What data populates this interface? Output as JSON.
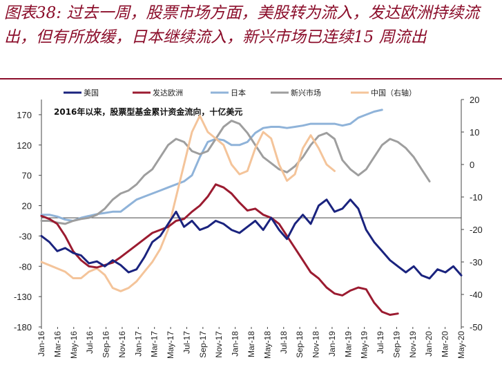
{
  "header": {
    "title": "图表38: 过去一周，股票市场方面，美股转为流入，发达欧洲持续流出，但有所放缓，日本继续流入，新兴市场已连续15 周流出"
  },
  "chart_data": {
    "type": "line",
    "note": "2016年以来，股票型基金累计资金流向，十亿美元",
    "x_ticks": [
      "Jan-16",
      "Mar-16",
      "May-16",
      "Jul-16",
      "Sep-16",
      "Nov-16",
      "Jan-17",
      "Mar-17",
      "May-17",
      "Jul-17",
      "Sep-17",
      "Nov-17",
      "Jan-18",
      "Mar-18",
      "May-18",
      "Jul-18",
      "Sep-18",
      "Nov-18",
      "Jan-19",
      "Mar-19",
      "May-19",
      "Jul-19",
      "Sep-19",
      "Nov-19",
      "Jan-20",
      "Mar-20",
      "May-20"
    ],
    "x_range": [
      0,
      53
    ],
    "y_left": {
      "range": [
        -180,
        195
      ],
      "ticks": [
        170,
        120,
        70,
        20,
        -30,
        -80,
        -130,
        -180
      ]
    },
    "y_right": {
      "range": [
        -50,
        20
      ],
      "ticks": [
        20,
        10,
        0,
        -10,
        -20,
        -30,
        -40,
        -50
      ]
    },
    "series": [
      {
        "name": "美国",
        "color": "#1a237e",
        "axis": "left",
        "points": [
          [
            0,
            -30
          ],
          [
            1,
            -40
          ],
          [
            2,
            -55
          ],
          [
            3,
            -50
          ],
          [
            4,
            -58
          ],
          [
            5,
            -62
          ],
          [
            6,
            -75
          ],
          [
            7,
            -72
          ],
          [
            8,
            -80
          ],
          [
            9,
            -70
          ],
          [
            10,
            -78
          ],
          [
            11,
            -90
          ],
          [
            12,
            -85
          ],
          [
            13,
            -65
          ],
          [
            14,
            -40
          ],
          [
            15,
            -30
          ],
          [
            16,
            -10
          ],
          [
            17,
            10
          ],
          [
            18,
            -15
          ],
          [
            19,
            -5
          ],
          [
            20,
            -20
          ],
          [
            21,
            -15
          ],
          [
            22,
            -5
          ],
          [
            23,
            -10
          ],
          [
            24,
            -20
          ],
          [
            25,
            -25
          ],
          [
            26,
            -15
          ],
          [
            27,
            -5
          ],
          [
            28,
            -20
          ],
          [
            29,
            0
          ],
          [
            30,
            -20
          ],
          [
            31,
            -35
          ],
          [
            32,
            -10
          ],
          [
            33,
            5
          ],
          [
            34,
            -10
          ],
          [
            35,
            20
          ],
          [
            36,
            30
          ],
          [
            37,
            10
          ],
          [
            38,
            15
          ],
          [
            39,
            30
          ],
          [
            40,
            15
          ],
          [
            41,
            -20
          ],
          [
            42,
            -40
          ],
          [
            43,
            -55
          ],
          [
            44,
            -70
          ],
          [
            45,
            -80
          ],
          [
            46,
            -90
          ],
          [
            47,
            -80
          ],
          [
            48,
            -95
          ],
          [
            49,
            -100
          ],
          [
            50,
            -85
          ],
          [
            51,
            -90
          ],
          [
            52,
            -80
          ],
          [
            53,
            -95
          ]
        ]
      },
      {
        "name": "发达欧洲",
        "color": "#9b1b30",
        "axis": "left",
        "points": [
          [
            0,
            3
          ],
          [
            1,
            -2
          ],
          [
            2,
            -10
          ],
          [
            3,
            -30
          ],
          [
            4,
            -55
          ],
          [
            5,
            -70
          ],
          [
            6,
            -80
          ],
          [
            7,
            -82
          ],
          [
            8,
            -78
          ],
          [
            9,
            -74
          ],
          [
            10,
            -65
          ],
          [
            11,
            -55
          ],
          [
            12,
            -45
          ],
          [
            13,
            -35
          ],
          [
            14,
            -25
          ],
          [
            15,
            -20
          ],
          [
            16,
            -15
          ],
          [
            17,
            -5
          ],
          [
            18,
            -2
          ],
          [
            19,
            10
          ],
          [
            20,
            20
          ],
          [
            21,
            35
          ],
          [
            22,
            55
          ],
          [
            23,
            50
          ],
          [
            24,
            40
          ],
          [
            25,
            25
          ],
          [
            26,
            12
          ],
          [
            27,
            15
          ],
          [
            28,
            5
          ],
          [
            29,
            0
          ],
          [
            30,
            -10
          ],
          [
            31,
            -30
          ],
          [
            32,
            -50
          ],
          [
            33,
            -70
          ],
          [
            34,
            -90
          ],
          [
            35,
            -100
          ],
          [
            36,
            -115
          ],
          [
            37,
            -125
          ],
          [
            38,
            -128
          ],
          [
            39,
            -120
          ],
          [
            40,
            -115
          ],
          [
            41,
            -118
          ],
          [
            42,
            -140
          ],
          [
            43,
            -155
          ],
          [
            44,
            -160
          ],
          [
            45,
            -158
          ]
        ]
      },
      {
        "name": "日本",
        "color": "#8fb3d9",
        "axis": "left",
        "points": [
          [
            0,
            5
          ],
          [
            1,
            5
          ],
          [
            2,
            2
          ],
          [
            3,
            -3
          ],
          [
            4,
            -5
          ],
          [
            5,
            0
          ],
          [
            6,
            3
          ],
          [
            7,
            6
          ],
          [
            8,
            8
          ],
          [
            9,
            10
          ],
          [
            10,
            10
          ],
          [
            11,
            20
          ],
          [
            12,
            30
          ],
          [
            13,
            35
          ],
          [
            14,
            40
          ],
          [
            15,
            45
          ],
          [
            16,
            50
          ],
          [
            17,
            55
          ],
          [
            18,
            60
          ],
          [
            19,
            70
          ],
          [
            20,
            100
          ],
          [
            21,
            125
          ],
          [
            22,
            130
          ],
          [
            23,
            128
          ],
          [
            24,
            120
          ],
          [
            25,
            120
          ],
          [
            26,
            125
          ],
          [
            27,
            140
          ],
          [
            28,
            148
          ],
          [
            29,
            150
          ],
          [
            30,
            150
          ],
          [
            31,
            148
          ],
          [
            32,
            150
          ],
          [
            33,
            152
          ],
          [
            34,
            155
          ],
          [
            35,
            155
          ],
          [
            36,
            155
          ],
          [
            37,
            155
          ],
          [
            38,
            152
          ],
          [
            39,
            155
          ],
          [
            40,
            165
          ],
          [
            41,
            170
          ],
          [
            42,
            175
          ],
          [
            43,
            178
          ]
        ]
      },
      {
        "name": "新兴市场",
        "color": "#9e9e9e",
        "axis": "left",
        "points": [
          [
            0,
            -5
          ],
          [
            1,
            -5
          ],
          [
            2,
            -8
          ],
          [
            3,
            -10
          ],
          [
            4,
            -5
          ],
          [
            5,
            -2
          ],
          [
            6,
            0
          ],
          [
            7,
            5
          ],
          [
            8,
            15
          ],
          [
            9,
            30
          ],
          [
            10,
            40
          ],
          [
            11,
            45
          ],
          [
            12,
            55
          ],
          [
            13,
            70
          ],
          [
            14,
            80
          ],
          [
            15,
            100
          ],
          [
            16,
            120
          ],
          [
            17,
            130
          ],
          [
            18,
            125
          ],
          [
            19,
            110
          ],
          [
            20,
            105
          ],
          [
            21,
            110
          ],
          [
            22,
            130
          ],
          [
            23,
            150
          ],
          [
            24,
            160
          ],
          [
            25,
            155
          ],
          [
            26,
            140
          ],
          [
            27,
            120
          ],
          [
            28,
            100
          ],
          [
            29,
            90
          ],
          [
            30,
            80
          ],
          [
            31,
            75
          ],
          [
            32,
            85
          ],
          [
            33,
            100
          ],
          [
            34,
            120
          ],
          [
            35,
            135
          ],
          [
            36,
            140
          ],
          [
            37,
            130
          ],
          [
            38,
            95
          ],
          [
            39,
            80
          ],
          [
            40,
            70
          ],
          [
            41,
            80
          ],
          [
            42,
            100
          ],
          [
            43,
            120
          ],
          [
            44,
            130
          ],
          [
            45,
            125
          ],
          [
            46,
            115
          ],
          [
            47,
            100
          ],
          [
            48,
            80
          ],
          [
            49,
            60
          ]
        ]
      },
      {
        "name": "中国（右轴）",
        "color": "#f4c49a",
        "axis": "right",
        "points": [
          [
            0,
            -30
          ],
          [
            1,
            -31
          ],
          [
            2,
            -32
          ],
          [
            3,
            -33
          ],
          [
            4,
            -35
          ],
          [
            5,
            -35
          ],
          [
            6,
            -33
          ],
          [
            7,
            -32
          ],
          [
            8,
            -34
          ],
          [
            9,
            -38
          ],
          [
            10,
            -39
          ],
          [
            11,
            -38
          ],
          [
            12,
            -36
          ],
          [
            13,
            -33
          ],
          [
            14,
            -30
          ],
          [
            15,
            -26
          ],
          [
            16,
            -20
          ],
          [
            17,
            -10
          ],
          [
            18,
            0
          ],
          [
            19,
            10
          ],
          [
            20,
            15
          ],
          [
            21,
            10
          ],
          [
            22,
            8
          ],
          [
            23,
            6
          ],
          [
            24,
            0
          ],
          [
            25,
            -3
          ],
          [
            26,
            -2
          ],
          [
            27,
            5
          ],
          [
            28,
            10
          ],
          [
            29,
            8
          ],
          [
            30,
            0
          ],
          [
            31,
            -5
          ],
          [
            32,
            -3
          ],
          [
            33,
            5
          ],
          [
            34,
            9
          ],
          [
            35,
            5
          ],
          [
            36,
            0
          ],
          [
            37,
            -2
          ]
        ]
      }
    ]
  }
}
